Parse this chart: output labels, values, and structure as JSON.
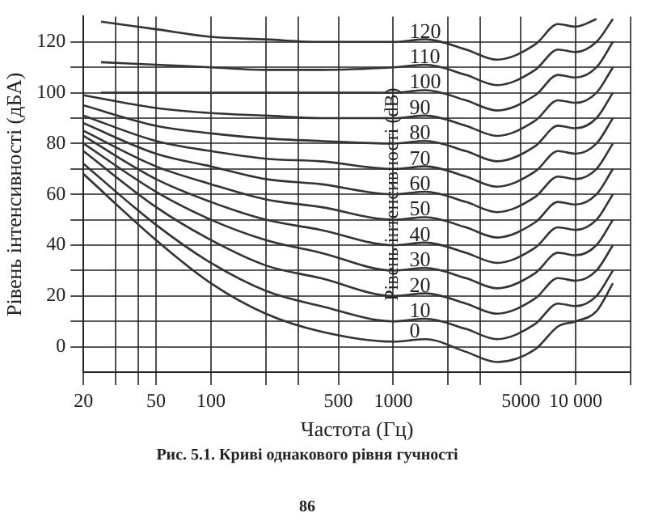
{
  "chart_data": {
    "type": "line",
    "xlabel": "Частота (Гц)",
    "ylabel": "Рівень інтенсивності (дБА)",
    "annotations": [
      "Рівень інтенсивності (dB)",
      "Рис. 5.1. Криві однакового рівня гучності",
      "86"
    ],
    "log": "x",
    "grid": true,
    "xlim": [
      20,
      20000
    ],
    "ylim": [
      -10,
      130
    ],
    "xticks": [
      20,
      {
        "value": 30,
        "label": null
      },
      {
        "value": 40,
        "label": null
      },
      50,
      100,
      {
        "value": 200,
        "label": null
      },
      {
        "value": 300,
        "label": null
      },
      500,
      1000,
      {
        "value": 2000,
        "label": null
      },
      {
        "value": 3000,
        "label": null
      },
      5000,
      {
        "value": 10000,
        "label": "10 000"
      },
      {
        "value": 20000,
        "label": null
      }
    ],
    "yticks": [
      0,
      {
        "value": 10,
        "label": null
      },
      20,
      {
        "value": 30,
        "label": null
      },
      40,
      {
        "value": 50,
        "label": null
      },
      60,
      {
        "value": 70,
        "label": null
      },
      80,
      {
        "value": 90,
        "label": null
      },
      100,
      {
        "value": 110,
        "label": null
      },
      120
    ],
    "series": [
      {
        "name": "0",
        "color": "#333333",
        "x": [
          20,
          50,
          100,
          200,
          400,
          1000,
          1500,
          2500,
          3700,
          6000,
          8000,
          10000,
          13000,
          16000
        ],
        "values": [
          68,
          42,
          25,
          13,
          6,
          2,
          3,
          -2,
          -6,
          -1,
          8,
          10,
          14,
          25
        ]
      },
      {
        "name": "10",
        "color": "#333333",
        "x": [
          20,
          50,
          100,
          200,
          400,
          1000,
          1500,
          2500,
          3700,
          6000,
          8000,
          10000,
          13000,
          16000
        ],
        "values": [
          72,
          48,
          33,
          22,
          16,
          10,
          11,
          7,
          3,
          9,
          17,
          16,
          20,
          30
        ]
      },
      {
        "name": "20",
        "color": "#333333",
        "x": [
          20,
          50,
          100,
          200,
          400,
          1000,
          1500,
          2500,
          3700,
          6000,
          8000,
          10000,
          13000,
          16000
        ],
        "values": [
          77,
          55,
          42,
          32,
          27,
          20,
          21,
          17,
          13,
          19,
          27,
          26,
          30,
          40
        ]
      },
      {
        "name": "30",
        "color": "#333333",
        "x": [
          20,
          50,
          100,
          200,
          400,
          1000,
          1500,
          2500,
          3700,
          6000,
          8000,
          10000,
          13000,
          16000
        ],
        "values": [
          80,
          61,
          50,
          42,
          37,
          30,
          31,
          27,
          23,
          29,
          37,
          36,
          40,
          50
        ]
      },
      {
        "name": "40",
        "color": "#333333",
        "x": [
          20,
          50,
          100,
          200,
          400,
          1000,
          1500,
          2500,
          3700,
          6000,
          8000,
          10000,
          13000,
          16000
        ],
        "values": [
          83,
          66,
          57,
          50,
          46,
          40,
          41,
          37,
          33,
          39,
          47,
          46,
          50,
          60
        ]
      },
      {
        "name": "50",
        "color": "#333333",
        "x": [
          20,
          50,
          100,
          200,
          400,
          1000,
          1500,
          2500,
          3700,
          6000,
          8000,
          10000,
          13000,
          16000
        ],
        "values": [
          85,
          71,
          64,
          58,
          55,
          50,
          51,
          47,
          43,
          49,
          57,
          56,
          60,
          70
        ]
      },
      {
        "name": "60",
        "color": "#333333",
        "x": [
          20,
          50,
          100,
          200,
          400,
          1000,
          1500,
          2500,
          3700,
          6000,
          8000,
          10000,
          13000,
          16000
        ],
        "values": [
          88,
          76,
          71,
          66,
          64,
          60,
          61,
          57,
          53,
          59,
          67,
          66,
          70,
          80
        ]
      },
      {
        "name": "70",
        "color": "#333333",
        "x": [
          20,
          50,
          100,
          200,
          400,
          1000,
          1500,
          2500,
          3700,
          6000,
          8000,
          10000,
          13000,
          16000
        ],
        "values": [
          91,
          81,
          77,
          74,
          73,
          70,
          71,
          67,
          63,
          69,
          77,
          76,
          80,
          90
        ]
      },
      {
        "name": "80",
        "color": "#333333",
        "x": [
          20,
          50,
          100,
          200,
          400,
          1000,
          1500,
          2500,
          3700,
          6000,
          8000,
          10000,
          13000,
          16000
        ],
        "values": [
          95,
          87,
          84,
          82,
          81,
          80,
          81,
          77,
          73,
          79,
          87,
          86,
          90,
          100
        ]
      },
      {
        "name": "90",
        "color": "#333333",
        "x": [
          20,
          50,
          100,
          200,
          400,
          1000,
          1500,
          2500,
          3700,
          6000,
          8000,
          10000,
          13000,
          16000
        ],
        "values": [
          99,
          94,
          92,
          91,
          90,
          90,
          91,
          87,
          83,
          89,
          97,
          96,
          100,
          110
        ]
      },
      {
        "name": "100",
        "color": "#333333",
        "x": [
          25,
          50,
          100,
          200,
          400,
          1000,
          1500,
          2500,
          3700,
          6000,
          8000,
          10000,
          13000,
          16000
        ],
        "values": [
          100,
          100,
          100,
          100,
          100,
          100,
          101,
          97,
          93,
          99,
          107,
          106,
          110,
          120
        ]
      },
      {
        "name": "110",
        "color": "#333333",
        "x": [
          25,
          50,
          100,
          200,
          400,
          1000,
          1500,
          2500,
          3700,
          6000,
          8000,
          10000,
          13000,
          16000
        ],
        "values": [
          112,
          111,
          110,
          109,
          109,
          110,
          111,
          107,
          103,
          109,
          117,
          116,
          120,
          129
        ]
      },
      {
        "name": "120",
        "color": "#333333",
        "x": [
          25,
          50,
          100,
          200,
          400,
          1000,
          1500,
          2500,
          3700,
          6000,
          8000,
          10000,
          13000
        ],
        "values": [
          128,
          125,
          122,
          121,
          120,
          120,
          121,
          117,
          113,
          119,
          127,
          126,
          129
        ]
      }
    ]
  }
}
